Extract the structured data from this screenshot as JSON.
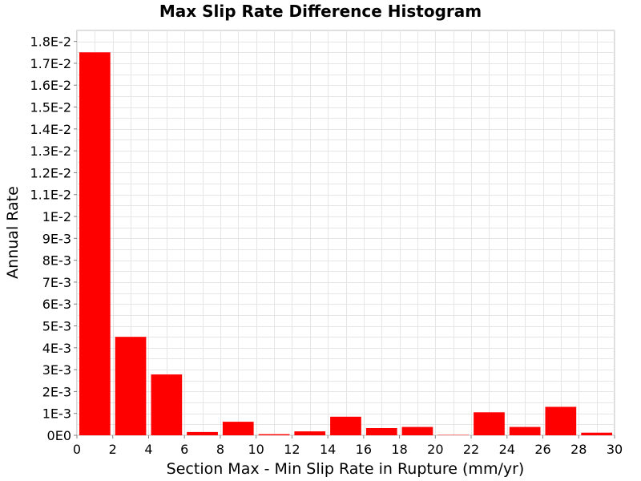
{
  "chart_data": {
    "type": "bar",
    "title": "Max Slip Rate Difference Histogram",
    "xlabel": "Section Max - Min Slip Rate in Rupture (mm/yr)",
    "ylabel": "Annual Rate",
    "xlim": [
      0,
      30
    ],
    "ylim": [
      0,
      0.0185
    ],
    "grid": true,
    "bar_color": "#ff0000",
    "bin_width": 2,
    "bin_starts": [
      0,
      2,
      4,
      6,
      8,
      10,
      12,
      14,
      16,
      18,
      20,
      22,
      24,
      26,
      28
    ],
    "values": [
      0.0175,
      0.0045,
      0.00278,
      0.00015,
      0.00062,
      5e-05,
      0.00018,
      0.00085,
      0.00033,
      0.00038,
      2e-05,
      0.00105,
      0.00038,
      0.0013,
      0.00012
    ],
    "x_ticks": [
      0,
      2,
      4,
      6,
      8,
      10,
      12,
      14,
      16,
      18,
      20,
      22,
      24,
      26,
      28,
      30
    ],
    "x_tick_labels": [
      "0",
      "2",
      "4",
      "6",
      "8",
      "10",
      "12",
      "14",
      "16",
      "18",
      "20",
      "22",
      "24",
      "26",
      "28",
      "30"
    ],
    "y_ticks": [
      0,
      0.001,
      0.002,
      0.003,
      0.004,
      0.005,
      0.006,
      0.007,
      0.008,
      0.009,
      0.01,
      0.011,
      0.012,
      0.013,
      0.014,
      0.015,
      0.016,
      0.017,
      0.018
    ],
    "y_tick_labels": [
      "0E0",
      "1E-3",
      "2E-3",
      "3E-3",
      "4E-3",
      "5E-3",
      "6E-3",
      "7E-3",
      "8E-3",
      "9E-3",
      "1E-2",
      "1.1E-2",
      "1.2E-2",
      "1.3E-2",
      "1.4E-2",
      "1.5E-2",
      "1.6E-2",
      "1.7E-2",
      "1.8E-2"
    ]
  }
}
